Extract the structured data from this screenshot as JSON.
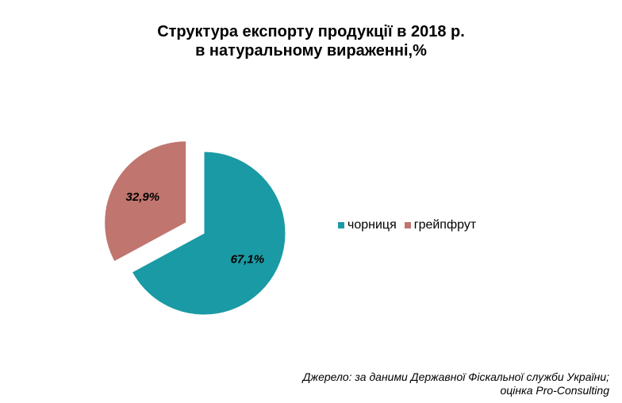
{
  "chart_data": {
    "type": "pie",
    "title_lines": [
      "Структура експорту продукції в 2018 р.",
      "в натуральному вираженні,%"
    ],
    "categories": [
      "чорниця",
      "грейпфрут"
    ],
    "values": [
      67.1,
      32.9
    ],
    "data_labels": [
      "67,1%",
      "32,9%"
    ],
    "colors": [
      "#1a9aa4",
      "#c0756f"
    ],
    "exploded": [
      false,
      true
    ],
    "legend_position": "right"
  },
  "source_lines": [
    "Джерело: за даними Державної Фіскальної служби України;",
    "оцінка Pro-Consulting"
  ]
}
